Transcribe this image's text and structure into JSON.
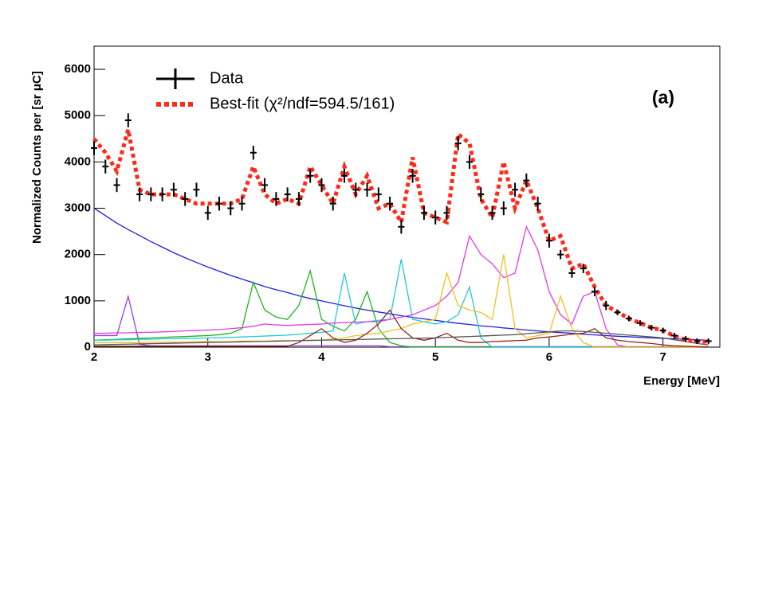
{
  "chart_data": {
    "type": "line",
    "xlabel": "Energy [MeV]",
    "ylabel": "Normalized Counts per [sr μC]",
    "annotation": "(a)",
    "xlim": [
      2,
      7.5
    ],
    "xticks": [
      2,
      3,
      4,
      5,
      6,
      7
    ],
    "ylim": [
      0,
      6500
    ],
    "yticks": [
      0,
      1000,
      2000,
      3000,
      4000,
      5000,
      6000
    ],
    "x": [
      2.0,
      2.1,
      2.2,
      2.3,
      2.4,
      2.5,
      2.6,
      2.7,
      2.8,
      2.9,
      3.0,
      3.1,
      3.2,
      3.3,
      3.4,
      3.5,
      3.6,
      3.7,
      3.8,
      3.9,
      4.0,
      4.1,
      4.2,
      4.3,
      4.4,
      4.5,
      4.6,
      4.7,
      4.8,
      4.9,
      5.0,
      5.1,
      5.2,
      5.3,
      5.4,
      5.5,
      5.6,
      5.7,
      5.8,
      5.9,
      6.0,
      6.1,
      6.2,
      6.3,
      6.4,
      6.5,
      6.6,
      6.7,
      6.8,
      6.9,
      7.0,
      7.1,
      7.2,
      7.3,
      7.4
    ],
    "series": [
      {
        "name": "Data",
        "style": "points",
        "color": "#000000",
        "values": [
          4300,
          3900,
          3500,
          4900,
          3300,
          3300,
          3300,
          3400,
          3200,
          3400,
          2900,
          3100,
          3000,
          3100,
          4200,
          3500,
          3200,
          3300,
          3200,
          3700,
          3500,
          3100,
          3700,
          3400,
          3400,
          3300,
          3100,
          2600,
          3700,
          2900,
          2800,
          2900,
          4400,
          4000,
          3300,
          2900,
          3000,
          3400,
          3600,
          3100,
          2300,
          2000,
          1600,
          1700,
          1200,
          900,
          750,
          620,
          520,
          420,
          360,
          250,
          180,
          130,
          130
        ],
        "errors": [
          150,
          150,
          150,
          150,
          150,
          150,
          150,
          150,
          150,
          150,
          150,
          150,
          150,
          150,
          150,
          150,
          150,
          150,
          150,
          150,
          150,
          150,
          150,
          150,
          150,
          150,
          150,
          150,
          150,
          150,
          150,
          150,
          150,
          150,
          150,
          150,
          150,
          150,
          150,
          150,
          150,
          100,
          100,
          100,
          100,
          100,
          60,
          60,
          60,
          60,
          60,
          60,
          60,
          60,
          60
        ]
      },
      {
        "name": "Best-fit (χ²/ndf=594.5/161)",
        "style": "dotted",
        "color": "#ff2a1a",
        "values": [
          4500,
          4200,
          3800,
          4700,
          3400,
          3300,
          3300,
          3300,
          3200,
          3100,
          3100,
          3100,
          3100,
          3200,
          3900,
          3300,
          3100,
          3200,
          3100,
          3900,
          3500,
          3100,
          3900,
          3300,
          3700,
          3000,
          3100,
          2700,
          4100,
          2900,
          2800,
          2700,
          4600,
          4400,
          3200,
          2800,
          4000,
          3000,
          3600,
          3000,
          2300,
          2400,
          1700,
          1800,
          1300,
          900,
          760,
          620,
          520,
          420,
          360,
          240,
          160,
          120,
          120
        ]
      },
      {
        "style": "line",
        "color": "#1f1fdc",
        "values": [
          3000,
          2840,
          2680,
          2540,
          2410,
          2280,
          2160,
          2040,
          1930,
          1830,
          1730,
          1640,
          1550,
          1470,
          1390,
          1310,
          1240,
          1180,
          1110,
          1050,
          1000,
          945,
          895,
          845,
          800,
          760,
          720,
          680,
          640,
          610,
          580,
          545,
          515,
          490,
          460,
          440,
          415,
          395,
          370,
          350,
          330,
          315,
          300,
          280,
          265,
          250,
          235,
          225,
          210,
          200,
          190,
          180,
          170,
          160,
          150
        ]
      },
      {
        "style": "line",
        "color": "#9a3ce0",
        "values": [
          250,
          250,
          250,
          1100,
          60,
          30,
          30,
          30,
          30,
          30,
          30,
          30,
          30,
          30,
          30,
          30,
          30,
          30,
          30,
          30,
          30,
          30,
          30,
          30,
          30,
          30,
          10,
          10,
          10,
          10,
          10,
          10,
          10,
          10,
          10,
          10,
          10,
          10,
          10,
          10,
          10,
          10,
          10,
          10,
          10,
          10,
          10,
          10,
          10,
          10,
          10,
          10,
          10,
          10,
          10
        ]
      },
      {
        "style": "line",
        "color": "#1fb51f",
        "values": [
          150,
          160,
          170,
          180,
          190,
          200,
          210,
          220,
          230,
          240,
          250,
          270,
          300,
          400,
          1400,
          800,
          650,
          600,
          900,
          1650,
          600,
          450,
          350,
          600,
          1200,
          400,
          100,
          30,
          0,
          0,
          0,
          0,
          0,
          0,
          0,
          0,
          0,
          0,
          0,
          0,
          0,
          0,
          0,
          0,
          0,
          0,
          0,
          0,
          0,
          0,
          0,
          0,
          0,
          0,
          0
        ]
      },
      {
        "style": "line",
        "color": "#22c8d8",
        "values": [
          150,
          150,
          160,
          160,
          170,
          170,
          180,
          180,
          190,
          190,
          200,
          200,
          210,
          220,
          230,
          240,
          250,
          260,
          280,
          300,
          320,
          350,
          1600,
          500,
          550,
          580,
          600,
          1900,
          600,
          550,
          500,
          550,
          700,
          1300,
          200,
          0,
          0,
          0,
          0,
          0,
          0,
          0,
          0,
          0,
          0,
          0,
          0,
          0,
          0,
          0,
          0,
          0,
          0,
          0,
          0
        ]
      },
      {
        "style": "line",
        "color": "#e23ae8",
        "values": [
          300,
          300,
          310,
          310,
          320,
          320,
          330,
          340,
          350,
          360,
          370,
          380,
          400,
          420,
          450,
          500,
          480,
          470,
          480,
          490,
          500,
          520,
          530,
          540,
          550,
          550,
          600,
          650,
          700,
          800,
          900,
          1100,
          1400,
          2400,
          2000,
          1800,
          1500,
          1600,
          2600,
          2100,
          1200,
          700,
          500,
          1100,
          1200,
          400,
          50,
          0,
          0,
          0,
          0,
          0,
          0,
          0,
          0
        ]
      },
      {
        "style": "line",
        "color": "#f0c020",
        "values": [
          100,
          100,
          100,
          100,
          100,
          110,
          110,
          110,
          110,
          120,
          120,
          120,
          120,
          130,
          130,
          130,
          140,
          140,
          140,
          150,
          150,
          180,
          200,
          250,
          280,
          300,
          350,
          400,
          500,
          550,
          600,
          1600,
          900,
          800,
          750,
          600,
          2000,
          400,
          200,
          250,
          300,
          1100,
          400,
          100,
          0,
          0,
          0,
          0,
          0,
          0,
          0,
          0,
          0,
          0,
          0
        ]
      },
      {
        "style": "line",
        "color": "#8b2a1a",
        "values": [
          20,
          20,
          20,
          20,
          20,
          20,
          20,
          20,
          20,
          20,
          20,
          20,
          20,
          20,
          20,
          20,
          20,
          20,
          100,
          250,
          400,
          200,
          100,
          150,
          300,
          500,
          800,
          400,
          200,
          150,
          200,
          300,
          150,
          100,
          100,
          120,
          130,
          140,
          150,
          200,
          220,
          250,
          280,
          300,
          400,
          200,
          150,
          120,
          100,
          80,
          50,
          30,
          20,
          10,
          0
        ]
      },
      {
        "style": "line",
        "color": "#555555",
        "values": [
          50,
          55,
          60,
          65,
          70,
          75,
          80,
          85,
          90,
          95,
          100,
          105,
          110,
          115,
          120,
          125,
          130,
          135,
          140,
          145,
          150,
          155,
          160,
          165,
          170,
          175,
          180,
          185,
          190,
          195,
          200,
          210,
          220,
          230,
          240,
          250,
          260,
          270,
          290,
          310,
          330,
          350,
          350,
          340,
          320,
          300,
          280,
          260,
          240,
          220,
          200,
          160,
          120,
          80,
          50
        ]
      }
    ]
  }
}
